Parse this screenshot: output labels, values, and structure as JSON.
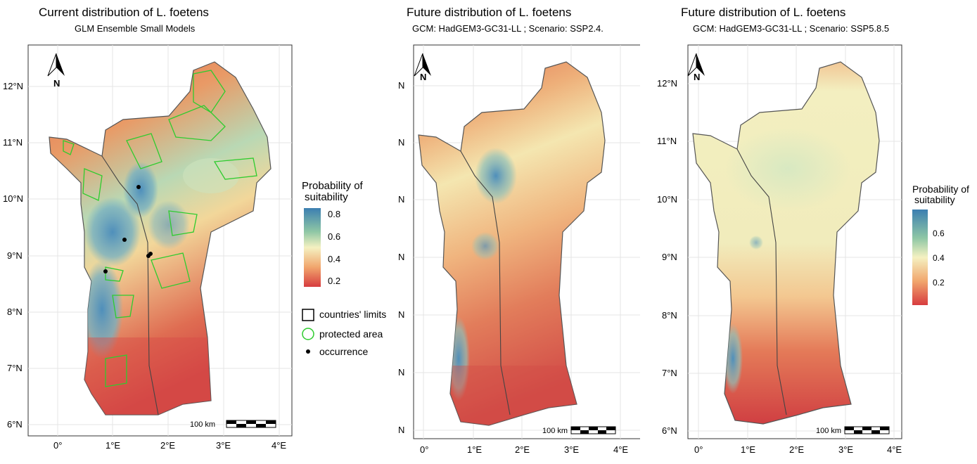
{
  "panels": [
    {
      "title": "Current distribution of L. foetens",
      "subtitle": "GLM Ensemble Small Models",
      "north_label": "N",
      "y_labels": [
        "12°N",
        "11°N",
        "10°N",
        "9°N",
        "8°N",
        "7°N",
        "6°N"
      ],
      "x_labels": [
        "0°",
        "1°E",
        "2°E",
        "3°E",
        "4°E"
      ],
      "scale_label": "100 km"
    },
    {
      "title": "Future distribution of L. foetens",
      "subtitle": "GCM: HadGEM3-GC31-LL ; Scenario: SSP2.4.",
      "north_label": "N",
      "y_labels": [
        "N",
        "N",
        "N",
        "N",
        "N",
        "N",
        "N"
      ],
      "x_labels": [
        "0°",
        "1°E",
        "2°E",
        "3°E",
        "4°E"
      ],
      "scale_label": "100 km"
    },
    {
      "title": "Future distribution of L. foetens",
      "subtitle": "GCM: HadGEM3-GC31-LL ; Scenario: SSP5.8.5",
      "north_label": "N",
      "y_labels": [
        "12°N",
        "11°N",
        "10°N",
        "9°N",
        "8°N",
        "7°N",
        "6°N"
      ],
      "x_labels": [
        "0°",
        "1°E",
        "2°E",
        "3°E",
        "4°E"
      ],
      "scale_label": "100 km"
    }
  ],
  "legend1": {
    "title_line1": "Probability of",
    "title_line2": "suitability",
    "ticks": [
      "0.8",
      "0.6",
      "0.4",
      "0.2"
    ],
    "countries_label": "countries' limits",
    "protected_label": "protected area",
    "occurrence_label": "occurrence"
  },
  "legend2": {
    "title_line1": "Probability of",
    "title_line2": "suitability",
    "ticks": [
      "0.6",
      "0.4",
      "0.2"
    ]
  },
  "colors": {
    "high": "#3c7fb1",
    "mid_high": "#8fc7a5",
    "mid": "#f4f1c1",
    "mid_low": "#f1a66d",
    "low": "#d73c3f",
    "protected_area": "#2ecc2e",
    "occurrence": "#000000",
    "border": "#555555"
  },
  "occurrences": [
    {
      "lon": 1.45,
      "lat": 10.22
    },
    {
      "lon": 1.2,
      "lat": 9.28
    },
    {
      "lon": 0.85,
      "lat": 8.72
    },
    {
      "lon": 1.65,
      "lat": 9.0
    },
    {
      "lon": 1.68,
      "lat": 9.03
    }
  ]
}
